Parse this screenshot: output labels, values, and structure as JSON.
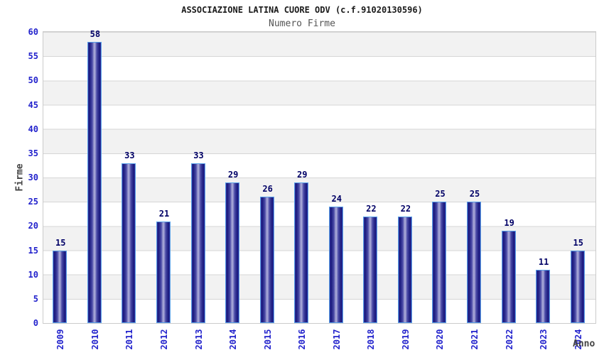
{
  "chart_data": {
    "type": "bar",
    "title": "ASSOCIAZIONE LATINA CUORE ODV (c.f.91020130596)",
    "subtitle": "Numero Firme",
    "xlabel": "Anno",
    "ylabel": "Firme",
    "categories": [
      "2009",
      "2010",
      "2011",
      "2012",
      "2013",
      "2014",
      "2015",
      "2016",
      "2017",
      "2018",
      "2019",
      "2020",
      "2021",
      "2022",
      "2023",
      "2024"
    ],
    "values": [
      15,
      58,
      33,
      21,
      33,
      29,
      26,
      29,
      24,
      22,
      22,
      25,
      25,
      19,
      11,
      15
    ],
    "ylim": [
      0,
      60
    ],
    "ytick_step": 5,
    "legend_position": "none",
    "grid": "horizontal-bands",
    "colors": {
      "bar_dark": "#18187c",
      "bar_mid": "#34349e",
      "bar_highlight": "#a9a9d8",
      "bar_border": "#58a0e8",
      "axis_tick_label": "#2222cc",
      "value_label": "#000066",
      "axis_title": "#444444",
      "title_text": "#1a1a1a",
      "subtitle_text": "#555555",
      "band_gray": "#f2f2f2",
      "band_white": "#ffffff",
      "grid_line": "#d6d6d6",
      "plot_border": "#cbcbcb"
    }
  }
}
